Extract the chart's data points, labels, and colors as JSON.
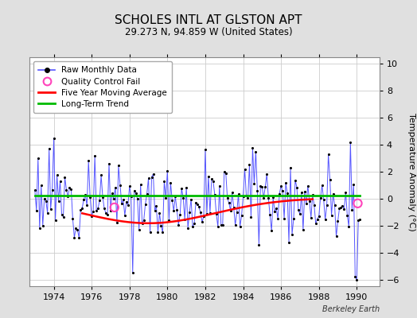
{
  "title": "SCHOLES INTL AT GLSTON APT",
  "subtitle": "29.273 N, 94.859 W (United States)",
  "ylabel_right": "Temperature Anomaly (°C)",
  "credit": "Berkeley Earth",
  "xlim": [
    1972.7,
    1991.2
  ],
  "ylim": [
    -6.5,
    10.5
  ],
  "yticks": [
    -6,
    -4,
    -2,
    0,
    2,
    4,
    6,
    8,
    10
  ],
  "xticks": [
    1974,
    1976,
    1978,
    1980,
    1982,
    1984,
    1986,
    1988,
    1990
  ],
  "bg_color": "#e0e0e0",
  "plot_bg_color": "#ffffff",
  "raw_color": "#5555ff",
  "dot_color": "#000000",
  "ma_color": "#ff0000",
  "trend_color": "#00bb00",
  "qc_color": "#ff44bb",
  "long_term_trend_value": 0.2,
  "seed": 12
}
